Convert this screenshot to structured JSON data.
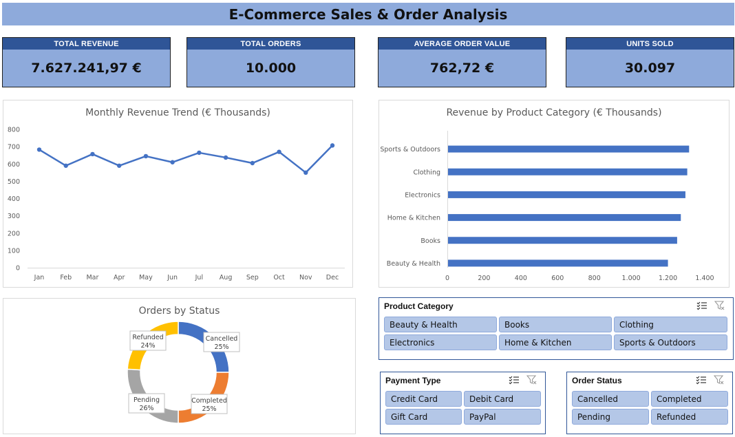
{
  "header": {
    "title": "E-Commerce Sales & Order Analysis"
  },
  "kpis": [
    {
      "label": "TOTAL REVENUE",
      "value": "7.627.241,97 €"
    },
    {
      "label": "TOTAL ORDERS",
      "value": "10.000"
    },
    {
      "label": "AVERAGE ORDER VALUE",
      "value": "762,72 €"
    },
    {
      "label": "UNITS SOLD",
      "value": "30.097"
    }
  ],
  "chart_data": [
    {
      "type": "line",
      "title": "Monthly Revenue Trend (€ Thousands)",
      "categories": [
        "Jan",
        "Feb",
        "Mar",
        "Apr",
        "May",
        "Jun",
        "Jul",
        "Aug",
        "Sep",
        "Oct",
        "Nov",
        "Dec"
      ],
      "values": [
        683,
        590,
        657,
        590,
        645,
        610,
        665,
        637,
        605,
        670,
        550,
        707
      ],
      "ylim": [
        0,
        800
      ],
      "yticks": [
        "0",
        "100",
        "200",
        "300",
        "400",
        "500",
        "600",
        "700",
        "800"
      ],
      "grid": false,
      "color": "#4472c4"
    },
    {
      "type": "bar",
      "orientation": "horizontal",
      "title": "Revenue by Product Category (€ Thousands)",
      "categories": [
        "Sports & Outdoors",
        "Clothing",
        "Electronics",
        "Home & Kitchen",
        "Books",
        "Beauty & Health"
      ],
      "values": [
        1315,
        1305,
        1295,
        1270,
        1250,
        1200
      ],
      "xlim": [
        0,
        1400
      ],
      "xticks": [
        "0",
        "200",
        "400",
        "600",
        "800",
        "1.000",
        "1.200",
        "1.400"
      ],
      "grid": false,
      "color": "#4472c4"
    },
    {
      "type": "pie",
      "donut": true,
      "title": "Orders by Status",
      "slices": [
        {
          "name": "Cancelled",
          "value": 25,
          "label": "25%",
          "color": "#4472c4"
        },
        {
          "name": "Completed",
          "value": 25,
          "label": "25%",
          "color": "#ed7d31"
        },
        {
          "name": "Pending",
          "value": 26,
          "label": "26%",
          "color": "#a5a5a5"
        },
        {
          "name": "Refunded",
          "value": 24,
          "label": "24%",
          "color": "#ffc000"
        }
      ]
    }
  ],
  "slicers": {
    "product_category": {
      "title": "Product Category",
      "items": [
        "Beauty & Health",
        "Books",
        "Clothing",
        "Electronics",
        "Home & Kitchen",
        "Sports & Outdoors"
      ]
    },
    "payment_type": {
      "title": "Payment Type",
      "items": [
        "Credit Card",
        "Debit Card",
        "Gift Card",
        "PayPal"
      ]
    },
    "order_status": {
      "title": "Order Status",
      "items": [
        "Cancelled",
        "Completed",
        "Pending",
        "Refunded"
      ]
    }
  },
  "icons": {
    "multiselect": "multi-select-icon",
    "clear": "clear-filter-icon"
  }
}
